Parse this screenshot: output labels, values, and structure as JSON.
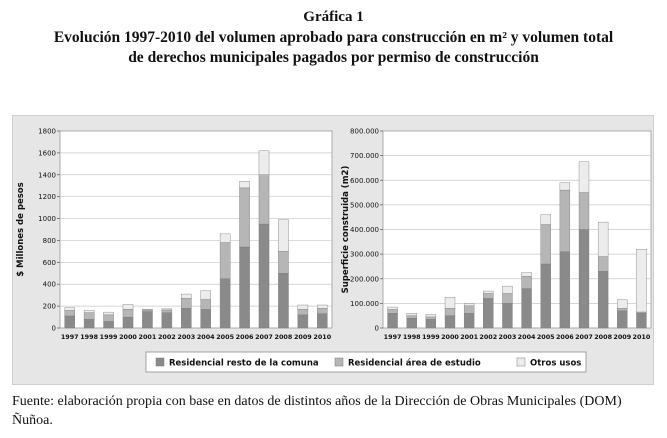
{
  "header": {
    "figure_label": "Gráfica 1",
    "title": "Evolución 1997-2010 del volumen aprobado para construcción en m² y volumen total de derechos municipales pagados por permiso de construcción"
  },
  "source_note": "Fuente: elaboración propia con base en datos de distintos años de la Dirección de Obras Municipales (DOM) Ñuñoa.",
  "colors": {
    "resto": "#8a8a8a",
    "area": "#b6b6b6",
    "otros": "#ececec",
    "panel_bg": "#e6e6e6",
    "grid": "#c8c8c8"
  },
  "chart_data": [
    {
      "type": "bar",
      "stacked": true,
      "ylabel": "$ Millones de pesos",
      "categories": [
        "1997",
        "1998",
        "1999",
        "2000",
        "2001",
        "2002",
        "2003",
        "2004",
        "2005",
        "2006",
        "2007",
        "2008",
        "2009",
        "2010"
      ],
      "ylim": [
        0,
        1800
      ],
      "yticks": [
        "0",
        "200",
        "400",
        "600",
        "800",
        "1000",
        "1200",
        "1400",
        "1600",
        "1800"
      ],
      "grid": true,
      "series": [
        {
          "name": "Residencial resto de la comuna",
          "values": [
            110,
            80,
            60,
            100,
            150,
            140,
            180,
            170,
            450,
            740,
            950,
            500,
            120,
            130
          ]
        },
        {
          "name": "Residencial área de estudio",
          "values": [
            50,
            60,
            60,
            70,
            15,
            25,
            90,
            90,
            330,
            540,
            450,
            200,
            50,
            50
          ]
        },
        {
          "name": "Otros usos",
          "values": [
            25,
            20,
            25,
            45,
            5,
            10,
            40,
            80,
            80,
            60,
            220,
            290,
            40,
            30
          ]
        }
      ]
    },
    {
      "type": "bar",
      "stacked": true,
      "ylabel": "Superficie construida (m2)",
      "categories": [
        "1997",
        "1998",
        "1999",
        "2000",
        "2001",
        "2002",
        "2003",
        "2004",
        "2005",
        "2006",
        "2007",
        "2008",
        "2009",
        "2010"
      ],
      "ylim": [
        0,
        800000
      ],
      "yticks": [
        "0",
        "100.000",
        "200.000",
        "300.000",
        "400.000",
        "500.000",
        "600.000",
        "700.000",
        "800.000"
      ],
      "grid": true,
      "series": [
        {
          "name": "Residencial resto de la comuna",
          "values": [
            60000,
            40000,
            35000,
            50000,
            60000,
            120000,
            100000,
            160000,
            260000,
            310000,
            400000,
            230000,
            70000,
            60000
          ]
        },
        {
          "name": "Residencial área de estudio",
          "values": [
            15000,
            10000,
            10000,
            30000,
            30000,
            20000,
            40000,
            50000,
            160000,
            250000,
            150000,
            60000,
            10000,
            5000
          ]
        },
        {
          "name": "Otros usos",
          "values": [
            10000,
            10000,
            10000,
            45000,
            10000,
            10000,
            30000,
            15000,
            40000,
            30000,
            125000,
            140000,
            35000,
            255000
          ]
        }
      ]
    }
  ],
  "legend": [
    "Residencial resto de la comuna",
    "Residencial área de estudio",
    "Otros usos"
  ]
}
